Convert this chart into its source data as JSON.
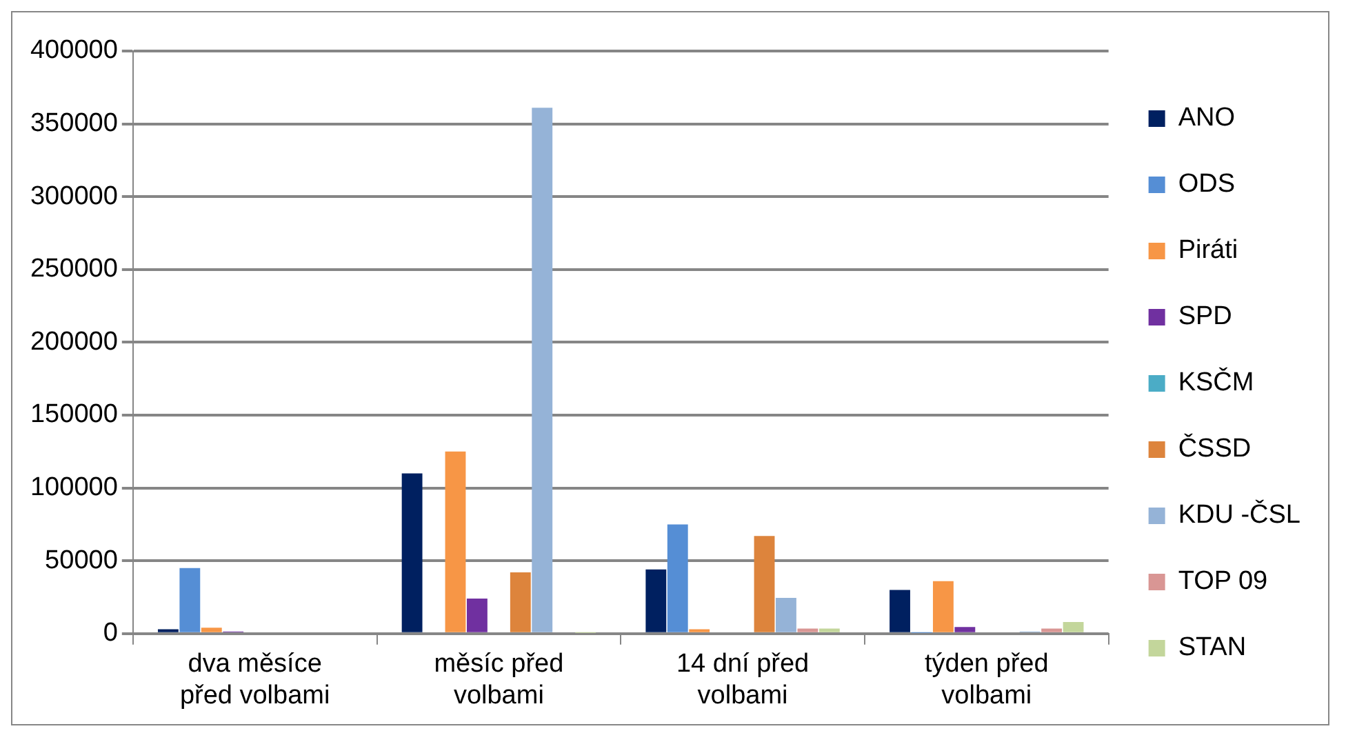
{
  "chart_data": {
    "type": "bar",
    "categories": [
      "dva měsíce před volbami",
      "měsíc před volbami",
      "14 dní před volbami",
      "týden před volbami"
    ],
    "series": [
      {
        "name": "ANO",
        "color": "#002060",
        "values": [
          3000,
          110000,
          44000,
          30000
        ]
      },
      {
        "name": "ODS",
        "color": "#558ed5",
        "values": [
          45000,
          0,
          75000,
          500
        ]
      },
      {
        "name": "Piráti",
        "color": "#f79646",
        "values": [
          4000,
          125000,
          3000,
          36000
        ]
      },
      {
        "name": "SPD",
        "color": "#7030a0",
        "values": [
          1500,
          24000,
          1000,
          4500
        ]
      },
      {
        "name": "KSČM",
        "color": "#4bacc6",
        "values": [
          1000,
          0,
          0,
          0
        ]
      },
      {
        "name": "ČSSD",
        "color": "#dd843c",
        "values": [
          0,
          42000,
          67000,
          1000
        ]
      },
      {
        "name": "KDU -ČSL",
        "color": "#95b3d7",
        "values": [
          0,
          361000,
          24500,
          1500
        ]
      },
      {
        "name": "TOP 09",
        "color": "#d99694",
        "values": [
          0,
          0,
          3500,
          3500
        ]
      },
      {
        "name": "STAN",
        "color": "#c3d69b",
        "values": [
          0,
          500,
          3500,
          8000
        ]
      }
    ],
    "ylim": [
      0,
      400000
    ],
    "yticks": [
      0,
      50000,
      100000,
      150000,
      200000,
      250000,
      300000,
      350000,
      400000
    ],
    "grid": "y",
    "legend": "right"
  }
}
